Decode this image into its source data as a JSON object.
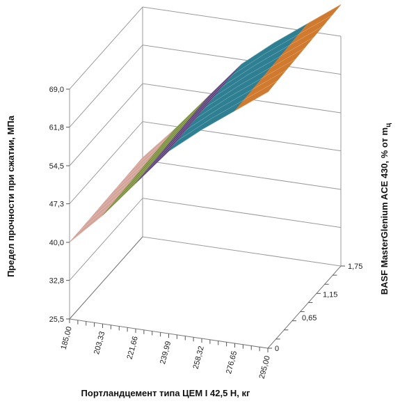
{
  "chart_data": {
    "type": "surface-3d",
    "xlabel": "Портландцемент типа ЦЕМ I 42,5 Н, кг",
    "ylabel": "Предел прочности при сжатии, МПа",
    "zlabel": "BASF MasterGlenium ACE 430, % от m",
    "zlabel_subscript": "ц",
    "x_ticks": [
      "185,00",
      "203,33",
      "221,66",
      "239,99",
      "258,32",
      "276,65",
      "295,00"
    ],
    "y_ticks": [
      "25,5",
      "32,8",
      "40,0",
      "47,3",
      "54,5",
      "61,8",
      "69,0"
    ],
    "z_ticks": [
      "0",
      "0,65",
      "1,15",
      "1,75"
    ],
    "x_range": [
      185,
      295
    ],
    "y_range": [
      25.5,
      69.0
    ],
    "z_range": [
      0,
      1.75
    ],
    "bands": [
      {
        "range": [
          40.0,
          47.3
        ],
        "color": "#d4a39a"
      },
      {
        "range": [
          47.3,
          54.5
        ],
        "color": "#7a8f3a"
      },
      {
        "range": [
          54.5,
          61.8
        ],
        "color": "#5b3f7a"
      },
      {
        "range": [
          61.8,
          69.0
        ],
        "color": "#2f7f93"
      },
      {
        "range": [
          69.0,
          76.3
        ],
        "color": "#cf7a2e"
      }
    ],
    "series": [
      {
        "z": 0,
        "x": [
          185.0,
          203.33,
          221.66,
          239.99,
          258.32,
          276.65,
          295.0
        ],
        "y": [
          40.0,
          46.0,
          53.0,
          60.0,
          65.0,
          69.5,
          74.0
        ]
      },
      {
        "z": 1.75,
        "x": [
          185.0,
          203.33,
          221.66,
          239.99,
          258.32,
          276.65,
          295.0
        ],
        "y": [
          40.5,
          47.0,
          54.0,
          61.0,
          66.0,
          70.5,
          75.0
        ]
      }
    ]
  }
}
